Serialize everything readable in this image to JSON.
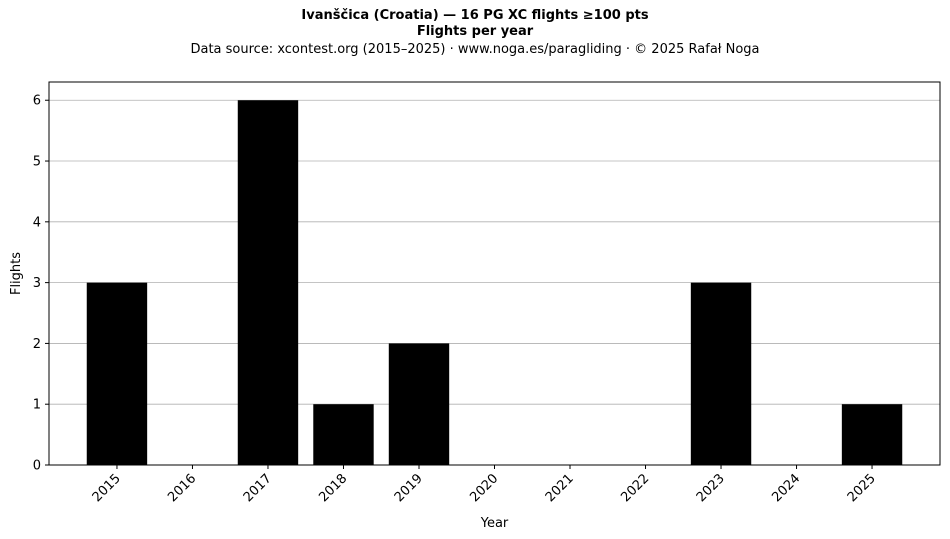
{
  "chart_data": {
    "type": "bar",
    "title": "Ivanščica (Croatia)  —  16 PG XC flights ≥100 pts",
    "subtitle": "Flights per year",
    "source_note": "Data source: xcontest.org (2015–2025)  ·  www.noga.es/paragliding  ·  © 2025 Rafał Noga",
    "xlabel": "Year",
    "ylabel": "Flights",
    "categories": [
      "2015",
      "2016",
      "2017",
      "2018",
      "2019",
      "2020",
      "2021",
      "2022",
      "2023",
      "2024",
      "2025"
    ],
    "values": [
      3,
      0,
      6,
      1,
      2,
      0,
      0,
      0,
      3,
      0,
      1
    ],
    "ylim": [
      0,
      6.3
    ],
    "yticks": [
      0,
      1,
      2,
      3,
      4,
      5,
      6
    ],
    "grid": "horizontal",
    "bar_color": "#000000",
    "grid_color": "#b0b0b0"
  }
}
